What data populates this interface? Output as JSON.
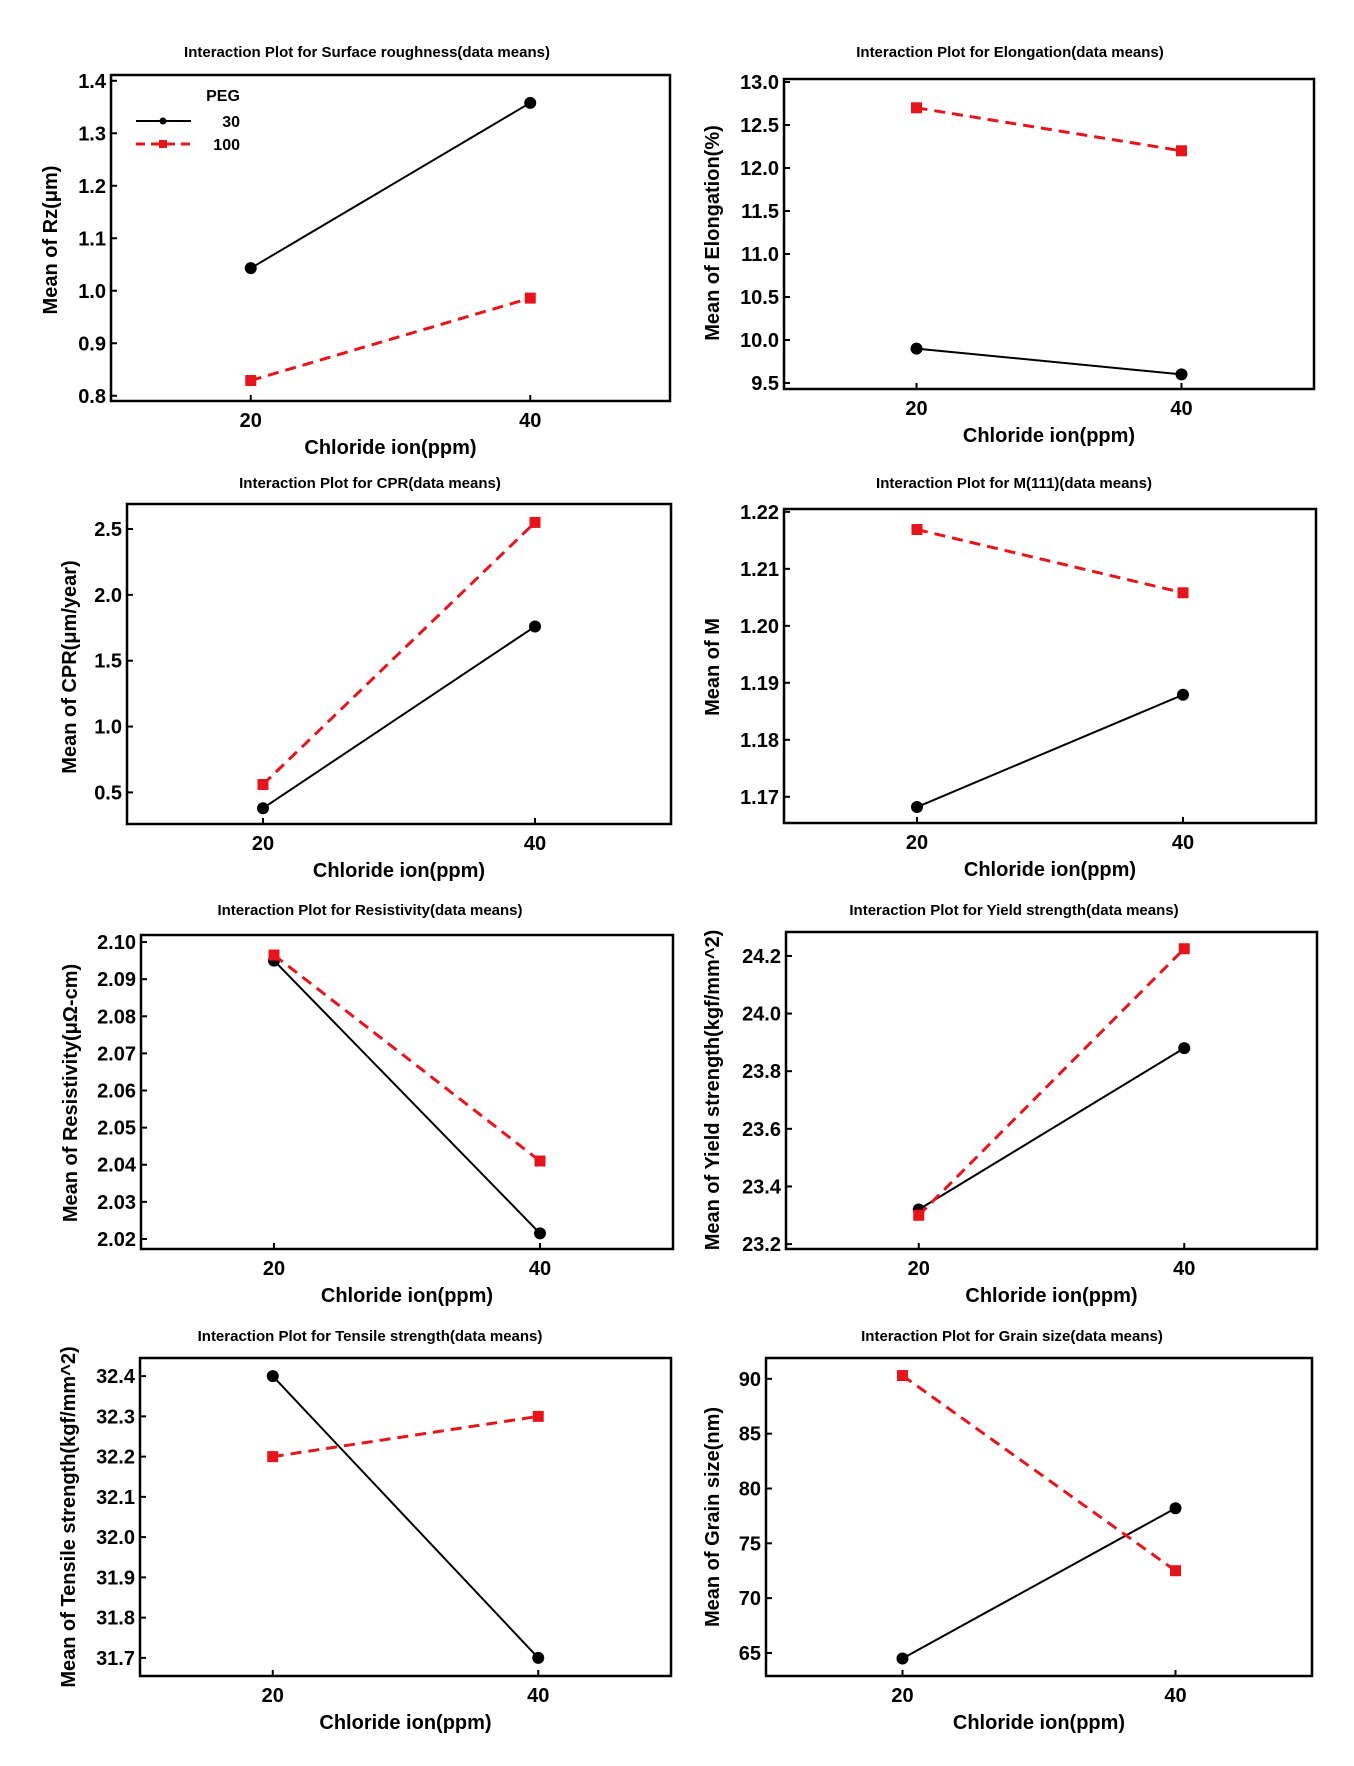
{
  "chart_data": [
    {
      "type": "line",
      "title": "Interaction Plot for Surface roughness(data means)",
      "xlabel": "Chloride ion(ppm)",
      "ylabel": "Mean of Rz(μm)",
      "x": [
        20,
        40
      ],
      "xticks": [
        "20",
        "40"
      ],
      "xlim": [
        10,
        50
      ],
      "ylim": [
        0.79,
        1.411
      ],
      "yticks": [
        "0.8",
        "0.9",
        "1.0",
        "1.1",
        "1.2",
        "1.3",
        "1.4"
      ],
      "grid": false,
      "legend": {
        "title": "PEG",
        "placement": "top-left"
      },
      "series": [
        {
          "name": "30",
          "values": [
            1.043,
            1.358
          ]
        },
        {
          "name": "100",
          "values": [
            0.829,
            0.986
          ]
        }
      ]
    },
    {
      "type": "line",
      "title": "Interaction Plot for Elongation(data means)",
      "xlabel": "Chloride ion(ppm)",
      "ylabel": "Mean of Elongation(%)",
      "x": [
        20,
        40
      ],
      "xticks": [
        "20",
        "40"
      ],
      "xlim": [
        10,
        50
      ],
      "ylim": [
        9.43,
        13.035
      ],
      "yticks": [
        "9.5",
        "10.0",
        "10.5",
        "11.0",
        "11.5",
        "12.0",
        "12.5",
        "13.0"
      ],
      "grid": false,
      "series": [
        {
          "name": "30",
          "values": [
            9.9,
            9.6
          ]
        },
        {
          "name": "100",
          "values": [
            12.7,
            12.2
          ]
        }
      ]
    },
    {
      "type": "line",
      "title": "Interaction Plot for CPR(data means)",
      "xlabel": "Chloride ion(ppm)",
      "ylabel": "Mean of CPR(μm/year)",
      "x": [
        20,
        40
      ],
      "xticks": [
        "20",
        "40"
      ],
      "xlim": [
        10,
        50
      ],
      "ylim": [
        0.26,
        2.69
      ],
      "yticks": [
        "0.5",
        "1.0",
        "1.5",
        "2.0",
        "2.5"
      ],
      "grid": false,
      "series": [
        {
          "name": "30",
          "values": [
            0.38,
            1.76
          ]
        },
        {
          "name": "100",
          "values": [
            0.56,
            2.55
          ]
        }
      ]
    },
    {
      "type": "line",
      "title": "Interaction Plot for M(111)(data means)",
      "xlabel": "Chloride ion(ppm)",
      "ylabel": "Mean of M",
      "x": [
        20,
        40
      ],
      "xticks": [
        "20",
        "40"
      ],
      "xlim": [
        10,
        50
      ],
      "ylim": [
        1.1654,
        1.2205
      ],
      "yticks": [
        "1.17",
        "1.18",
        "1.19",
        "1.20",
        "1.21",
        "1.22"
      ],
      "grid": false,
      "series": [
        {
          "name": "30",
          "values": [
            1.1682,
            1.1879
          ]
        },
        {
          "name": "100",
          "values": [
            1.2169,
            1.2058
          ]
        }
      ]
    },
    {
      "type": "line",
      "title": "Interaction Plot for Resistivity(data means)",
      "xlabel": "Chloride ion(ppm)",
      "ylabel": "Mean of Resistivity(μΩ-cm)",
      "x": [
        20,
        40
      ],
      "xticks": [
        "20",
        "40"
      ],
      "xlim": [
        10,
        50
      ],
      "ylim": [
        2.0173,
        2.1019
      ],
      "yticks": [
        "2.02",
        "2.03",
        "2.04",
        "2.05",
        "2.06",
        "2.07",
        "2.08",
        "2.09",
        "2.10"
      ],
      "grid": false,
      "series": [
        {
          "name": "30",
          "values": [
            2.095,
            2.0215
          ]
        },
        {
          "name": "100",
          "values": [
            2.0965,
            2.041
          ]
        }
      ]
    },
    {
      "type": "line",
      "title": "Interaction Plot for Yield strength(data means)",
      "xlabel": "Chloride ion(ppm)",
      "ylabel": "Mean of Yield strength(kgf/mm^2)",
      "x": [
        20,
        40
      ],
      "xticks": [
        "20",
        "40"
      ],
      "xlim": [
        10,
        50
      ],
      "ylim": [
        23.183,
        24.283
      ],
      "yticks": [
        "23.2",
        "23.4",
        "23.6",
        "23.8",
        "24.0",
        "24.2"
      ],
      "grid": false,
      "series": [
        {
          "name": "30",
          "values": [
            23.32,
            23.88
          ]
        },
        {
          "name": "100",
          "values": [
            23.3,
            24.225
          ]
        }
      ]
    },
    {
      "type": "line",
      "title": "Interaction Plot for Tensile strength(data means)",
      "xlabel": "Chloride ion(ppm)",
      "ylabel": "Mean of Tensile strength(kgf/mm^2)",
      "x": [
        20,
        40
      ],
      "xticks": [
        "20",
        "40"
      ],
      "xlim": [
        10,
        50
      ],
      "ylim": [
        31.655,
        32.445
      ],
      "yticks": [
        "31.7",
        "31.8",
        "31.9",
        "32.0",
        "32.1",
        "32.2",
        "32.3",
        "32.4"
      ],
      "grid": false,
      "series": [
        {
          "name": "30",
          "values": [
            32.4,
            31.7
          ]
        },
        {
          "name": "100",
          "values": [
            32.2,
            32.3
          ]
        }
      ]
    },
    {
      "type": "line",
      "title": "Interaction Plot for Grain size(data means)",
      "xlabel": "Chloride ion(ppm)",
      "ylabel": "Mean of Grain size(nm)",
      "x": [
        20,
        40
      ],
      "xticks": [
        "20",
        "40"
      ],
      "xlim": [
        10,
        50
      ],
      "ylim": [
        62.9,
        91.9
      ],
      "yticks": [
        "65",
        "70",
        "75",
        "80",
        "85",
        "90"
      ],
      "grid": false,
      "series": [
        {
          "name": "30",
          "values": [
            64.5,
            78.2
          ]
        },
        {
          "name": "100",
          "values": [
            90.3,
            72.5
          ]
        }
      ]
    }
  ],
  "series_styles": {
    "30": {
      "color": "#000000",
      "line": "solid",
      "marker": "circle"
    },
    "100": {
      "color": "#e8141b",
      "line": "dashed",
      "marker": "square"
    }
  }
}
